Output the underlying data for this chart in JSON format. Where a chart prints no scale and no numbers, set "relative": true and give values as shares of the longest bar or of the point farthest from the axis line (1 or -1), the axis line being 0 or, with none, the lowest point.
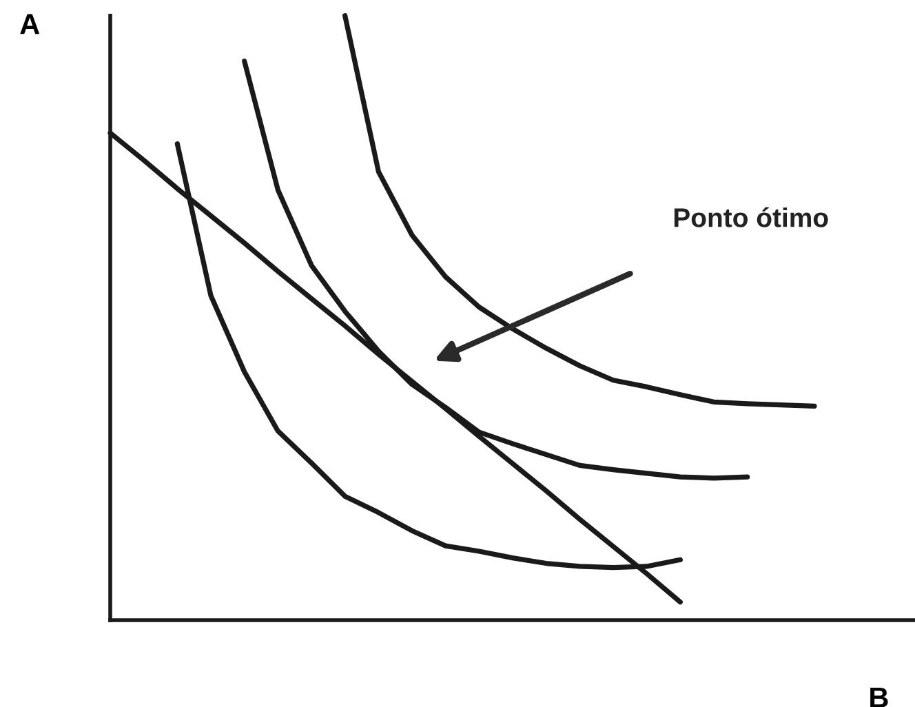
{
  "chart_data": {
    "type": "line",
    "relative": true,
    "xlabel": "B",
    "ylabel": "A",
    "marker": "none",
    "line_style": "solid",
    "categories": [
      null,
      null,
      null,
      null,
      null,
      null,
      null,
      null,
      null,
      null,
      null,
      null,
      null,
      null,
      null,
      null,
      null,
      null,
      null,
      null,
      null,
      null,
      null,
      null,
      null
    ],
    "annotations": [
      "Ponto ótimo"
    ],
    "series": [
      {
        "color": "#1a1a1a",
        "values": [
          0.806,
          0.761,
          0.714,
          0.669,
          0.624,
          0.577,
          0.532,
          0.487,
          0.44,
          0.395,
          0.35,
          0.304,
          0.259,
          0.214,
          0.167,
          0.122,
          0.077,
          0.03,
          null,
          null,
          null,
          null,
          null,
          null,
          null
        ]
      },
      {
        "color": "#1a1a1a",
        "values": [
          null,
          null,
          0.788,
          0.537,
          0.411,
          0.313,
          0.26,
          0.205,
          0.178,
          0.148,
          0.123,
          0.114,
          0.103,
          0.094,
          0.089,
          0.087,
          0.089,
          0.1,
          null,
          null,
          null,
          null,
          null,
          null,
          null
        ]
      },
      {
        "color": "#1a1a1a",
        "values": [
          null,
          null,
          null,
          null,
          0.925,
          0.712,
          0.587,
          0.511,
          0.445,
          0.39,
          0.352,
          0.311,
          0.292,
          0.274,
          0.256,
          0.249,
          0.243,
          0.237,
          0.235,
          0.237,
          null,
          null,
          null,
          null,
          null
        ]
      },
      {
        "color": "#1a1a1a",
        "values": [
          null,
          null,
          null,
          null,
          null,
          null,
          null,
          1.0,
          0.742,
          0.637,
          0.568,
          0.518,
          0.482,
          0.45,
          0.421,
          0.397,
          0.386,
          0.373,
          0.361,
          0.358,
          0.356,
          0.354,
          null,
          null,
          null
        ]
      }
    ]
  }
}
